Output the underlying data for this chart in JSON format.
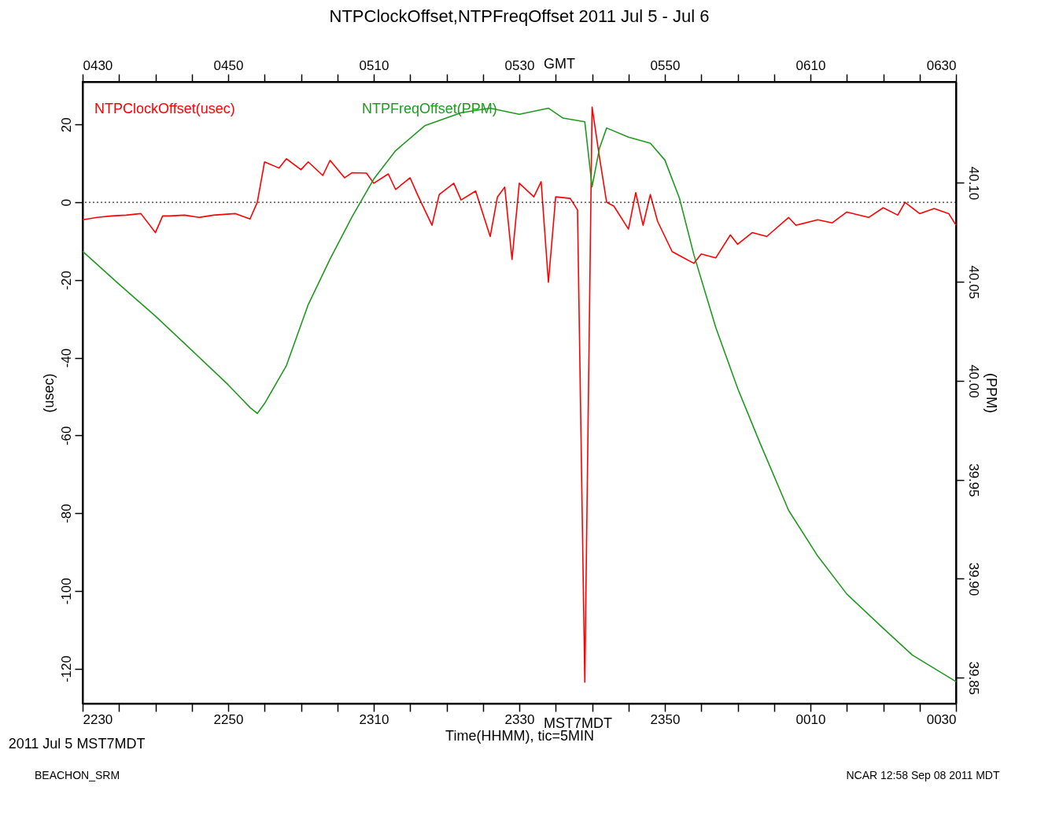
{
  "chart_data": {
    "type": "line",
    "title": "NTPClockOffset,NTPFreqOffset 2011 Jul 5 - Jul 6",
    "xlabel": "Time(HHMM), tic=5MIN",
    "ylabel": "(usec)",
    "y2label": "(PPM)",
    "xlim": [
      "2011-07-05T22:30",
      "2011-07-06T00:30"
    ],
    "ylim": [
      -129,
      31
    ],
    "y2lim": [
      39.837,
      40.151
    ],
    "x2lim": [
      "2011-07-06T04:30",
      "2011-07-06T06:30"
    ],
    "xticks": [
      {
        "value": "2011-07-05T22:30",
        "label": "2230"
      },
      {
        "value": "2011-07-05T22:35",
        "label": null
      },
      {
        "value": "2011-07-05T22:40",
        "label": null
      },
      {
        "value": "2011-07-05T22:45",
        "label": null
      },
      {
        "value": "2011-07-05T22:50",
        "label": "2250"
      },
      {
        "value": "2011-07-05T22:55",
        "label": null
      },
      {
        "value": "2011-07-05T23:00",
        "label": null
      },
      {
        "value": "2011-07-05T23:05",
        "label": null
      },
      {
        "value": "2011-07-05T23:10",
        "label": "2310"
      },
      {
        "value": "2011-07-05T23:15",
        "label": null
      },
      {
        "value": "2011-07-05T23:20",
        "label": null
      },
      {
        "value": "2011-07-05T23:25",
        "label": null
      },
      {
        "value": "2011-07-05T23:30",
        "label": "2330"
      },
      {
        "value": "2011-07-05T23:35",
        "label": null
      },
      {
        "value": "2011-07-05T23:40",
        "label": null
      },
      {
        "value": "2011-07-05T23:45",
        "label": null
      },
      {
        "value": "2011-07-05T23:50",
        "label": "2350"
      },
      {
        "value": "2011-07-05T23:55",
        "label": null
      },
      {
        "value": "2011-07-06T00:00",
        "label": null
      },
      {
        "value": "2011-07-06T00:05",
        "label": null
      },
      {
        "value": "2011-07-06T00:10",
        "label": "0010"
      },
      {
        "value": "2011-07-06T00:15",
        "label": null
      },
      {
        "value": "2011-07-06T00:20",
        "label": null
      },
      {
        "value": "2011-07-06T00:25",
        "label": null
      },
      {
        "value": "2011-07-06T00:30",
        "label": "0030"
      }
    ],
    "x2ticks": [
      {
        "value": "2011-07-06T04:30",
        "label": "0430"
      },
      {
        "value": "2011-07-06T04:35",
        "label": null
      },
      {
        "value": "2011-07-06T04:40",
        "label": null
      },
      {
        "value": "2011-07-06T04:45",
        "label": null
      },
      {
        "value": "2011-07-06T04:50",
        "label": "0450"
      },
      {
        "value": "2011-07-06T04:55",
        "label": null
      },
      {
        "value": "2011-07-06T05:00",
        "label": null
      },
      {
        "value": "2011-07-06T05:05",
        "label": null
      },
      {
        "value": "2011-07-06T05:10",
        "label": "0510"
      },
      {
        "value": "2011-07-06T05:15",
        "label": null
      },
      {
        "value": "2011-07-06T05:20",
        "label": null
      },
      {
        "value": "2011-07-06T05:25",
        "label": null
      },
      {
        "value": "2011-07-06T05:30",
        "label": "0530"
      },
      {
        "value": "2011-07-06T05:35",
        "label": null
      },
      {
        "value": "2011-07-06T05:40",
        "label": null
      },
      {
        "value": "2011-07-06T05:45",
        "label": null
      },
      {
        "value": "2011-07-06T05:50",
        "label": "0550"
      },
      {
        "value": "2011-07-06T05:55",
        "label": null
      },
      {
        "value": "2011-07-06T06:00",
        "label": null
      },
      {
        "value": "2011-07-06T06:05",
        "label": null
      },
      {
        "value": "2011-07-06T06:10",
        "label": "0610"
      },
      {
        "value": "2011-07-06T06:15",
        "label": null
      },
      {
        "value": "2011-07-06T06:20",
        "label": null
      },
      {
        "value": "2011-07-06T06:25",
        "label": null
      },
      {
        "value": "2011-07-06T06:30",
        "label": "0630"
      }
    ],
    "yticks": [
      -120,
      -100,
      -80,
      -60,
      -40,
      -20,
      0,
      20
    ],
    "y2ticks": [
      {
        "value": 39.85,
        "label": "39.85"
      },
      {
        "value": 39.9,
        "label": "39.90"
      },
      {
        "value": 39.95,
        "label": "39.95"
      },
      {
        "value": 40.0,
        "label": "40.00"
      },
      {
        "value": 40.05,
        "label": "40.05"
      },
      {
        "value": 40.1,
        "label": "40.10"
      }
    ],
    "grid": false,
    "legend": "top left",
    "marker": "none",
    "line_style": "solid",
    "ref_lines": [
      {
        "axis": "y",
        "value": 0,
        "color": "#000000",
        "line_style": "dotted"
      }
    ],
    "annotations": [
      "GMT",
      "MST7MDT",
      "2011 Jul 5 MST7MDT",
      "BEACHON_SRM",
      "NCAR 12:58 Sep 08 2011 MDT"
    ],
    "series": [
      {
        "name": "NTPClockOffset(usec)",
        "color": "#ff0000",
        "x": [
          "2011-07-05T22:30",
          "2011-07-05T22:32",
          "2011-07-05T22:34",
          "2011-07-05T22:36",
          "2011-07-05T22:38",
          "2011-07-05T22:40",
          "2011-07-05T22:41",
          "2011-07-05T22:42",
          "2011-07-05T22:44",
          "2011-07-05T22:46",
          "2011-07-05T22:48",
          "2011-07-05T22:51",
          "2011-07-05T22:53",
          "2011-07-05T22:54",
          "2011-07-05T22:55",
          "2011-07-05T22:57",
          "2011-07-05T22:58",
          "2011-07-05T23:00",
          "2011-07-05T23:01",
          "2011-07-05T23:03",
          "2011-07-05T23:04",
          "2011-07-05T23:06",
          "2011-07-05T23:07",
          "2011-07-05T23:09",
          "2011-07-05T23:10",
          "2011-07-05T23:12",
          "2011-07-05T23:13",
          "2011-07-05T23:15",
          "2011-07-05T23:16",
          "2011-07-05T23:18",
          "2011-07-05T23:19",
          "2011-07-05T23:21",
          "2011-07-05T23:22",
          "2011-07-05T23:24",
          "2011-07-05T23:26",
          "2011-07-05T23:27",
          "2011-07-05T23:28",
          "2011-07-05T23:29",
          "2011-07-05T23:30",
          "2011-07-05T23:32",
          "2011-07-05T23:33",
          "2011-07-05T23:34",
          "2011-07-05T23:35",
          "2011-07-05T23:37",
          "2011-07-05T23:38",
          "2011-07-05T23:39",
          "2011-07-05T23:40",
          "2011-07-05T23:41",
          "2011-07-05T23:42",
          "2011-07-05T23:43",
          "2011-07-05T23:45",
          "2011-07-05T23:46",
          "2011-07-05T23:47",
          "2011-07-05T23:48",
          "2011-07-05T23:49",
          "2011-07-05T23:50",
          "2011-07-05T23:51",
          "2011-07-05T23:52",
          "2011-07-05T23:54",
          "2011-07-05T23:55",
          "2011-07-05T23:57",
          "2011-07-05T23:59",
          "2011-07-06T00:00",
          "2011-07-06T00:02",
          "2011-07-06T00:04",
          "2011-07-06T00:07",
          "2011-07-06T00:08",
          "2011-07-06T00:11",
          "2011-07-06T00:13",
          "2011-07-06T00:15",
          "2011-07-06T00:18",
          "2011-07-06T00:20",
          "2011-07-06T00:22",
          "2011-07-06T00:23",
          "2011-07-06T00:25",
          "2011-07-06T00:27",
          "2011-07-06T00:29",
          "2011-07-06T00:30"
        ],
        "values": [
          -4.5,
          -3.9,
          -3.5,
          -3.3,
          -2.9,
          -7.8,
          -3.5,
          -3.5,
          -3.3,
          -3.9,
          -3.3,
          -2.9,
          -4.3,
          0,
          10.4,
          8.8,
          11.2,
          8.4,
          10.4,
          6.9,
          10.8,
          6.3,
          7.6,
          7.5,
          4.9,
          7.3,
          3.3,
          6.3,
          2.0,
          -5.9,
          2.0,
          4.9,
          0.6,
          2.9,
          -8.8,
          1.4,
          3.9,
          -14.7,
          4.9,
          1.4,
          5.3,
          -20.6,
          1.4,
          1.0,
          -2.0,
          -123.5,
          24.5,
          11.8,
          0,
          -1.0,
          -6.9,
          2.5,
          -5.9,
          2.0,
          -4.9,
          -8.8,
          -12.7,
          -13.7,
          -15.7,
          -13.3,
          -14.3,
          -8.4,
          -10.8,
          -7.8,
          -8.8,
          -3.9,
          -5.9,
          -4.5,
          -5.3,
          -2.5,
          -3.9,
          -1.4,
          -3.3,
          0,
          -2.9,
          -1.6,
          -2.9,
          -5.9
        ]
      },
      {
        "name": "NTPFreqOffset(PPM)",
        "color": "#1f9a1f",
        "axis": "y2",
        "x": [
          "2011-07-05T22:30",
          "2011-07-05T22:35",
          "2011-07-05T22:40",
          "2011-07-05T22:45",
          "2011-07-05T22:50",
          "2011-07-05T22:53",
          "2011-07-05T22:54",
          "2011-07-05T22:55",
          "2011-07-05T22:58",
          "2011-07-05T23:01",
          "2011-07-05T23:04",
          "2011-07-05T23:07",
          "2011-07-05T23:10",
          "2011-07-05T23:13",
          "2011-07-05T23:17",
          "2011-07-05T23:22",
          "2011-07-05T23:26",
          "2011-07-05T23:30",
          "2011-07-05T23:34",
          "2011-07-05T23:36",
          "2011-07-05T23:39",
          "2011-07-05T23:40",
          "2011-07-05T23:41",
          "2011-07-05T23:42",
          "2011-07-05T23:45",
          "2011-07-05T23:48",
          "2011-07-05T23:50",
          "2011-07-05T23:52",
          "2011-07-05T23:54",
          "2011-07-05T23:57",
          "2011-07-06T00:00",
          "2011-07-06T00:03",
          "2011-07-06T00:07",
          "2011-07-06T00:11",
          "2011-07-06T00:15",
          "2011-07-06T00:20",
          "2011-07-06T00:24",
          "2011-07-06T00:30"
        ],
        "values": [
          40.0654,
          40.0488,
          40.0327,
          40.0154,
          39.998,
          39.9865,
          39.9835,
          39.9885,
          40.0077,
          40.0385,
          40.0615,
          40.0827,
          40.1019,
          40.1162,
          40.1288,
          40.1354,
          40.1377,
          40.1346,
          40.1377,
          40.1327,
          40.1308,
          40.098,
          40.1173,
          40.1277,
          40.1231,
          40.12,
          40.1115,
          40.0923,
          40.0635,
          40.0269,
          39.9962,
          39.9692,
          39.9346,
          39.9115,
          39.8923,
          39.875,
          39.8615,
          39.8481
        ]
      }
    ]
  }
}
